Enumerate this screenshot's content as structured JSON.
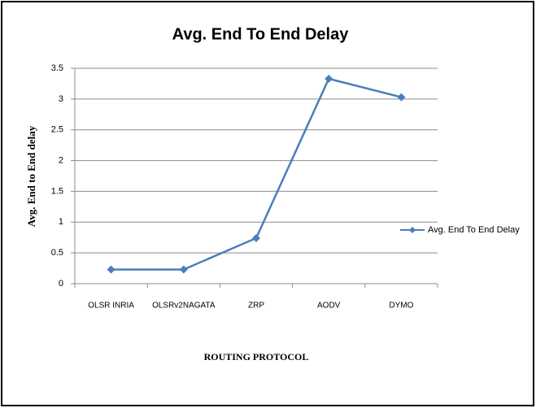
{
  "chart_data": {
    "type": "line",
    "title": "Avg. End To End Delay",
    "x_label": "ROUTING PROTOCOL",
    "y_label": "Avg. End to End delay",
    "categories": [
      "OLSR INRIA",
      "OLSRv2NAGATA",
      "ZRP",
      "AODV",
      "DYMO"
    ],
    "series": [
      {
        "name": "Avg. End To End Delay",
        "color": "#4a7ebb",
        "values": [
          0.23,
          0.23,
          0.74,
          3.33,
          3.03
        ]
      }
    ],
    "ylim": [
      0,
      3.5
    ],
    "yticks": [
      0,
      0.5,
      1,
      1.5,
      2,
      2.5,
      3,
      3.5
    ],
    "grid": true,
    "legend": "right"
  }
}
